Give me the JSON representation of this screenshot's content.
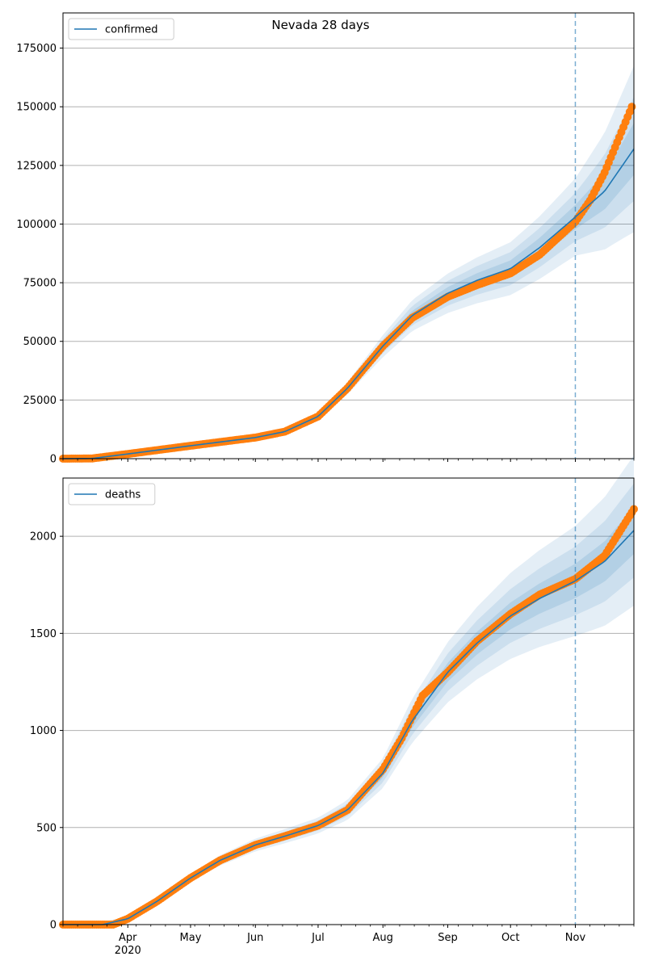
{
  "figure": {
    "title": "Nevada 28 days"
  },
  "colors": {
    "model_line": "#1f77b4",
    "band_fill": "#1f77b4",
    "observed_points": "#ff7f0e",
    "grid": "#b0b0b0",
    "forecast_marker": "#1f77b4"
  },
  "chart_data": [
    {
      "type": "line",
      "panel": "top",
      "title": "Nevada 28 days",
      "xlabel": "",
      "ylabel": "",
      "x_range": [
        "2020-03-01",
        "2020-11-29"
      ],
      "ylim": [
        0,
        190000
      ],
      "yticks": [
        0,
        25000,
        50000,
        75000,
        100000,
        125000,
        150000,
        175000
      ],
      "grid": "horizontal",
      "legend_placement": "top-left",
      "forecast_start": "2020-11-01",
      "series": [
        {
          "name": "confirmed",
          "kind": "model-median",
          "points": [
            [
              "2020-03-01",
              0
            ],
            [
              "2020-03-15",
              100
            ],
            [
              "2020-04-01",
              2000
            ],
            [
              "2020-05-01",
              5500
            ],
            [
              "2020-06-01",
              9000
            ],
            [
              "2020-06-15",
              11500
            ],
            [
              "2020-07-01",
              18000
            ],
            [
              "2020-07-15",
              30000
            ],
            [
              "2020-08-01",
              48000
            ],
            [
              "2020-08-15",
              61000
            ],
            [
              "2020-09-01",
              70500
            ],
            [
              "2020-09-15",
              76000
            ],
            [
              "2020-10-01",
              81000
            ],
            [
              "2020-10-15",
              90000
            ],
            [
              "2020-11-01",
              103000
            ],
            [
              "2020-11-15",
              114000
            ],
            [
              "2020-11-29",
              132000
            ]
          ]
        },
        {
          "kind": "observed",
          "points": [
            [
              "2020-03-01",
              0
            ],
            [
              "2020-03-15",
              100
            ],
            [
              "2020-04-01",
              2000
            ],
            [
              "2020-05-01",
              5500
            ],
            [
              "2020-06-01",
              9000
            ],
            [
              "2020-06-15",
              11500
            ],
            [
              "2020-07-01",
              18000
            ],
            [
              "2020-07-15",
              30000
            ],
            [
              "2020-08-01",
              48000
            ],
            [
              "2020-08-15",
              60000
            ],
            [
              "2020-09-01",
              69000
            ],
            [
              "2020-09-15",
              74000
            ],
            [
              "2020-10-01",
              79000
            ],
            [
              "2020-10-15",
              87000
            ],
            [
              "2020-11-01",
              101000
            ],
            [
              "2020-11-08",
              110000
            ],
            [
              "2020-11-15",
              122000
            ],
            [
              "2020-11-22",
              137000
            ],
            [
              "2020-11-28",
              150000
            ]
          ]
        }
      ]
    },
    {
      "type": "line",
      "panel": "bottom",
      "xlabel": "",
      "ylabel": "",
      "x_range": [
        "2020-03-01",
        "2020-11-29"
      ],
      "ylim": [
        0,
        2300
      ],
      "yticks": [
        0,
        500,
        1000,
        1500,
        2000
      ],
      "xticks": [
        "Apr",
        "May",
        "Jun",
        "Jul",
        "Aug",
        "Sep",
        "Oct",
        "Nov"
      ],
      "xtick_dates": [
        "2020-04-01",
        "2020-05-01",
        "2020-06-01",
        "2020-07-01",
        "2020-08-01",
        "2020-09-01",
        "2020-10-01",
        "2020-11-01"
      ],
      "year_label": "2020",
      "grid": "horizontal",
      "legend_placement": "top-left",
      "forecast_start": "2020-11-01",
      "series": [
        {
          "name": "deaths",
          "kind": "model-median",
          "points": [
            [
              "2020-03-01",
              0
            ],
            [
              "2020-03-20",
              0
            ],
            [
              "2020-04-01",
              30
            ],
            [
              "2020-04-15",
              120
            ],
            [
              "2020-05-01",
              240
            ],
            [
              "2020-05-15",
              330
            ],
            [
              "2020-06-01",
              410
            ],
            [
              "2020-06-15",
              455
            ],
            [
              "2020-07-01",
              510
            ],
            [
              "2020-07-15",
              590
            ],
            [
              "2020-08-01",
              780
            ],
            [
              "2020-08-15",
              1050
            ],
            [
              "2020-09-01",
              1300
            ],
            [
              "2020-09-15",
              1450
            ],
            [
              "2020-10-01",
              1590
            ],
            [
              "2020-10-15",
              1680
            ],
            [
              "2020-11-01",
              1770
            ],
            [
              "2020-11-15",
              1870
            ],
            [
              "2020-11-29",
              2030
            ]
          ]
        },
        {
          "kind": "observed",
          "points": [
            [
              "2020-03-01",
              0
            ],
            [
              "2020-03-25",
              0
            ],
            [
              "2020-04-01",
              30
            ],
            [
              "2020-04-15",
              120
            ],
            [
              "2020-05-01",
              240
            ],
            [
              "2020-05-15",
              330
            ],
            [
              "2020-06-01",
              410
            ],
            [
              "2020-06-15",
              455
            ],
            [
              "2020-07-01",
              510
            ],
            [
              "2020-07-15",
              590
            ],
            [
              "2020-08-01",
              800
            ],
            [
              "2020-08-10",
              960
            ],
            [
              "2020-08-20",
              1180
            ],
            [
              "2020-09-01",
              1300
            ],
            [
              "2020-09-15",
              1460
            ],
            [
              "2020-10-01",
              1600
            ],
            [
              "2020-10-15",
              1700
            ],
            [
              "2020-11-01",
              1780
            ],
            [
              "2020-11-15",
              1900
            ],
            [
              "2020-11-29",
              2140
            ]
          ]
        }
      ]
    }
  ]
}
